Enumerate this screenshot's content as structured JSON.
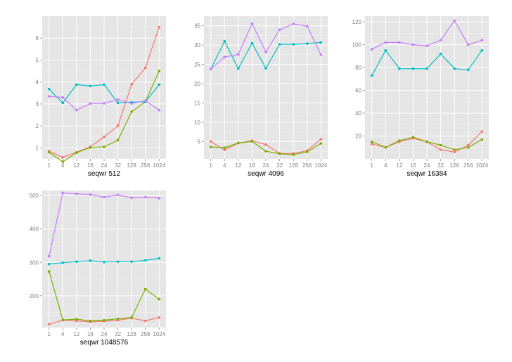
{
  "colors": {
    "panel_background": "#e5e5e5",
    "grid": "#ffffff",
    "tick_text": "#7f7f7f",
    "series_red": "#f8766d",
    "series_green": "#7cae00",
    "series_teal": "#00bfc4",
    "series_purple": "#c77cff"
  },
  "chart_data": [
    {
      "type": "line",
      "xlabel": "seqwr 512",
      "ylabel": "",
      "categories": [
        "1",
        "4",
        "12",
        "16",
        "24",
        "32",
        "128",
        "256",
        "1024"
      ],
      "ylim": [
        0.5,
        7
      ],
      "yticks": [
        1,
        2,
        3,
        4,
        5,
        6
      ],
      "grid": true,
      "series": [
        {
          "color": "#f8766d",
          "values": [
            0.85,
            0.57,
            0.8,
            1.05,
            1.5,
            2.0,
            3.9,
            4.65,
            6.5
          ]
        },
        {
          "color": "#7cae00",
          "values": [
            0.8,
            0.37,
            0.78,
            1.02,
            1.05,
            1.35,
            2.65,
            3.1,
            4.5
          ]
        },
        {
          "color": "#00bfc4",
          "values": [
            3.68,
            3.05,
            3.88,
            3.82,
            3.88,
            3.05,
            3.08,
            3.1,
            3.88
          ]
        },
        {
          "color": "#c77cff",
          "values": [
            3.35,
            3.3,
            2.72,
            3.02,
            3.03,
            3.2,
            3.02,
            3.15,
            2.72
          ]
        }
      ]
    },
    {
      "type": "line",
      "xlabel": "seqwr 4096",
      "ylabel": "",
      "categories": [
        "1",
        "4",
        "12",
        "16",
        "24",
        "32",
        "128",
        "256",
        "1024"
      ],
      "ylim": [
        0.5,
        37.5
      ],
      "yticks": [
        5,
        10,
        15,
        20,
        25,
        30,
        35
      ],
      "grid": true,
      "series": [
        {
          "color": "#f8766d",
          "values": [
            5.0,
            2.8,
            4.6,
            5.2,
            4.2,
            1.9,
            1.9,
            2.6,
            5.6
          ]
        },
        {
          "color": "#7cae00",
          "values": [
            3.6,
            3.4,
            4.6,
            5.0,
            2.5,
            1.8,
            1.6,
            2.3,
            4.5
          ]
        },
        {
          "color": "#00bfc4",
          "values": [
            23.8,
            31.0,
            23.9,
            30.5,
            24.0,
            30.2,
            30.2,
            30.4,
            30.7
          ]
        },
        {
          "color": "#c77cff",
          "values": [
            23.8,
            26.9,
            27.6,
            35.6,
            28.2,
            34.0,
            35.5,
            34.9,
            27.5
          ]
        }
      ]
    },
    {
      "type": "line",
      "xlabel": "seqwr 16384",
      "ylabel": "",
      "categories": [
        "1",
        "4",
        "12",
        "16",
        "24",
        "32",
        "128",
        "256",
        "1024"
      ],
      "ylim": [
        0,
        125
      ],
      "yticks": [
        20,
        40,
        60,
        80,
        100,
        120
      ],
      "grid": true,
      "series": [
        {
          "color": "#f8766d",
          "values": [
            13,
            10,
            15,
            18,
            15,
            8,
            6,
            12,
            24
          ]
        },
        {
          "color": "#7cae00",
          "values": [
            15,
            10,
            16,
            19,
            15,
            12,
            8,
            10,
            17
          ]
        },
        {
          "color": "#00bfc4",
          "values": [
            73,
            95,
            79,
            79,
            79,
            92,
            79,
            78,
            95
          ]
        },
        {
          "color": "#c77cff",
          "values": [
            96,
            102,
            102,
            100,
            99,
            104,
            121,
            100,
            104
          ]
        }
      ]
    },
    {
      "type": "line",
      "xlabel": "seqwr 1048576",
      "ylabel": "",
      "categories": [
        "1",
        "4",
        "12",
        "16",
        "24",
        "32",
        "128",
        "256",
        "1024"
      ],
      "ylim": [
        105,
        515
      ],
      "yticks": [
        200,
        300,
        400,
        500
      ],
      "grid": true,
      "series": [
        {
          "color": "#f8766d",
          "values": [
            115,
            127,
            125,
            122,
            124,
            127,
            133,
            125,
            135
          ]
        },
        {
          "color": "#7cae00",
          "values": [
            273,
            128,
            130,
            125,
            127,
            131,
            135,
            220,
            190
          ]
        },
        {
          "color": "#00bfc4",
          "values": [
            295,
            299,
            302,
            305,
            301,
            302,
            302,
            306,
            312
          ]
        },
        {
          "color": "#c77cff",
          "values": [
            318,
            508,
            505,
            503,
            495,
            502,
            493,
            495,
            492
          ]
        }
      ]
    }
  ]
}
